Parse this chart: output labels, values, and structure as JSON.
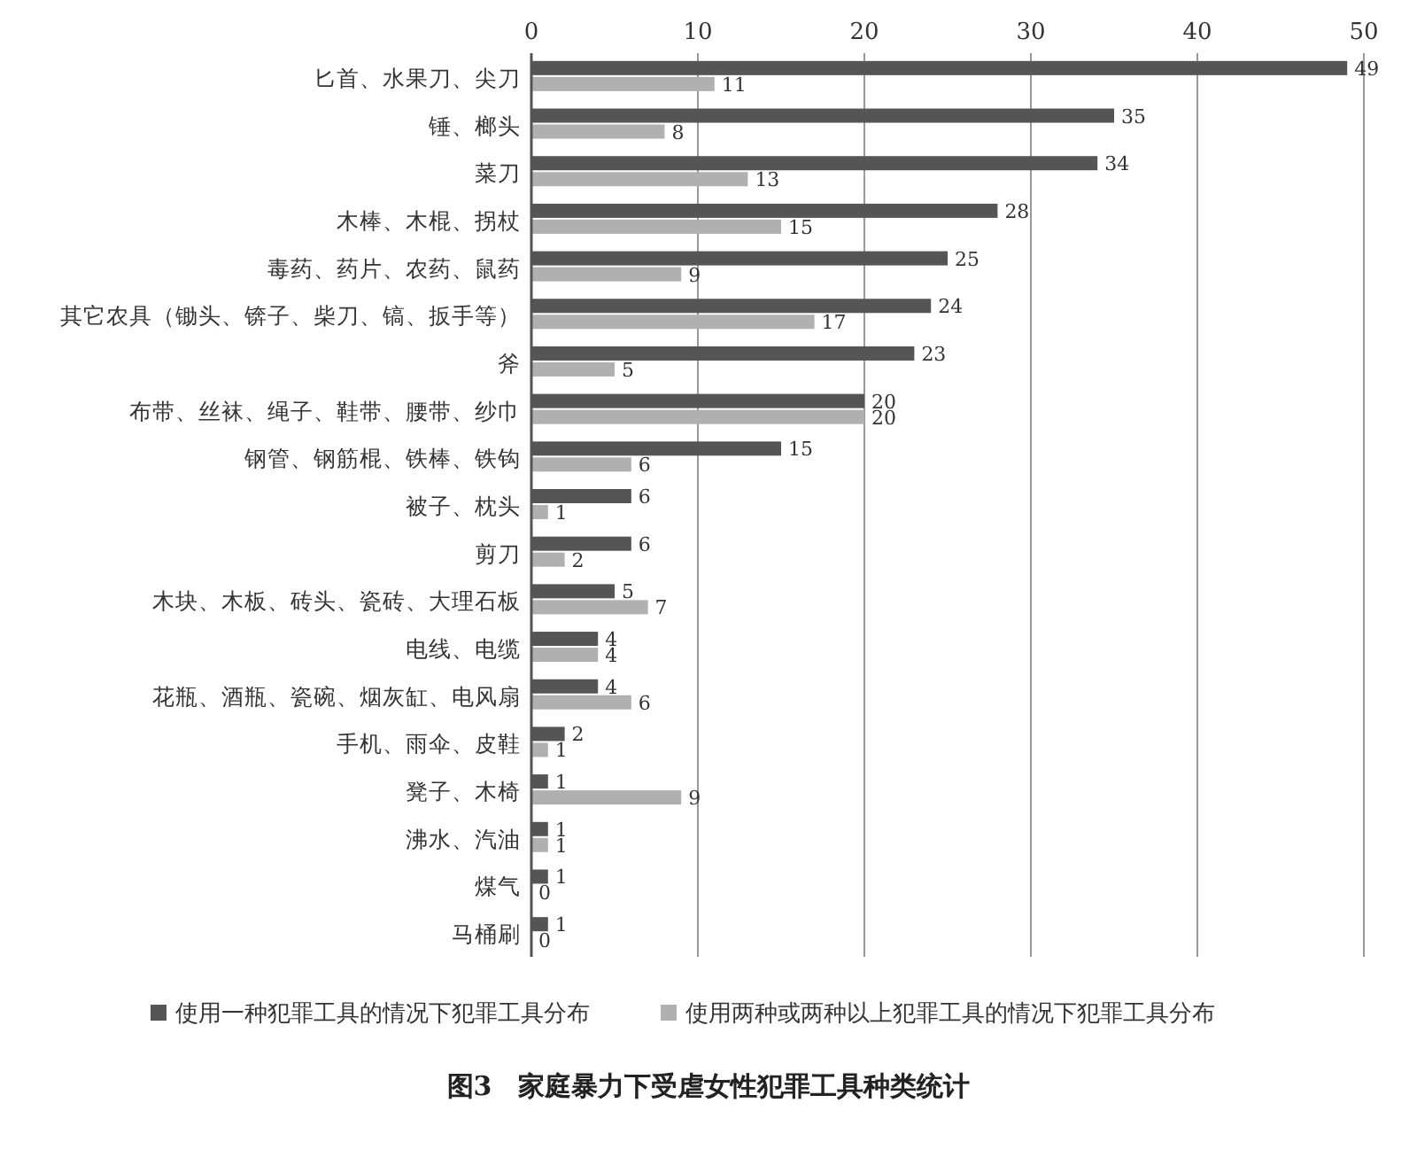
{
  "chart_data": {
    "type": "bar",
    "orientation": "horizontal",
    "title": "图3　家庭暴力下受虐女性犯罪工具种类统计",
    "categories": [
      "匕首、水果刀、尖刀",
      "锤、榔头",
      "菜刀",
      "木棒、木棍、拐杖",
      "毒药、药片、农药、鼠药",
      "其它农具（锄头、锛子、柴刀、镐、扳手等）",
      "斧",
      "布带、丝袜、绳子、鞋带、腰带、纱巾",
      "钢管、钢筋棍、铁棒、铁钩",
      "被子、枕头",
      "剪刀",
      "木块、木板、砖头、瓷砖、大理石板",
      "电线、电缆",
      "花瓶、酒瓶、瓷碗、烟灰缸、电风扇",
      "手机、雨伞、皮鞋",
      "凳子、木椅",
      "沸水、汽油",
      "煤气",
      "马桶刷"
    ],
    "series": [
      {
        "name": "使用一种犯罪工具的情况下犯罪工具分布",
        "color": "#555555",
        "values": [
          49,
          35,
          34,
          28,
          25,
          24,
          23,
          20,
          15,
          6,
          6,
          5,
          4,
          4,
          2,
          1,
          1,
          1,
          1
        ]
      },
      {
        "name": "使用两种或两种以上犯罪工具的情况下犯罪工具分布",
        "color": "#b0b0b0",
        "values": [
          11,
          8,
          13,
          15,
          9,
          17,
          5,
          20,
          6,
          1,
          2,
          7,
          4,
          6,
          1,
          9,
          1,
          0,
          0
        ]
      }
    ],
    "xlim": [
      0,
      50
    ],
    "xticks": [
      0,
      10,
      20,
      30,
      40,
      50
    ],
    "grid": "x",
    "legend": "bottom",
    "data_labels": true
  }
}
